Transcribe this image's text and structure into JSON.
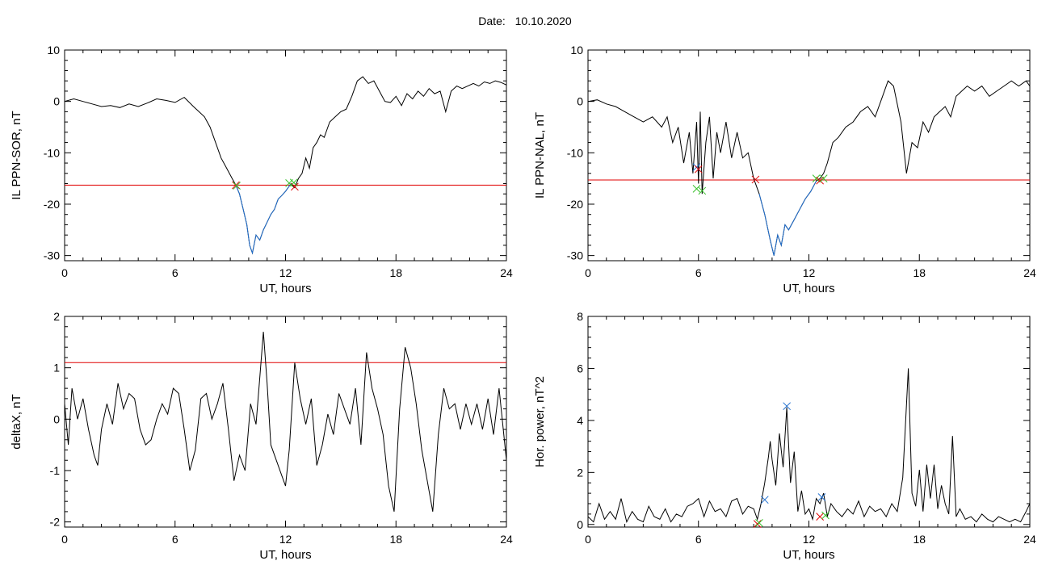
{
  "header": {
    "date_label": "Date:",
    "date_value": "10.10.2020"
  },
  "chart_data": [
    {
      "id": "sor",
      "type": "line",
      "ylabel": "IL PPN-SOR, nT",
      "xlabel": "UT, hours",
      "xlim": [
        0,
        24
      ],
      "ylim": [
        -31,
        10
      ],
      "xticks": [
        0,
        6,
        12,
        18,
        24
      ],
      "yticks": [
        -30,
        -20,
        -10,
        0,
        10
      ],
      "series_color": "#000000",
      "highlight_color": "#1f6fd0",
      "threshold": {
        "value": -16.3,
        "color": "#e00000"
      },
      "series": [
        {
          "x": [
            0,
            0.5,
            1,
            1.5,
            2,
            2.5,
            3,
            3.5,
            4,
            4.5,
            5,
            5.5,
            6,
            6.5,
            7,
            7.3,
            7.6,
            7.9,
            8.2,
            8.5,
            8.8,
            9.1,
            9.3,
            9.5,
            9.7,
            9.9,
            10.05,
            10.2,
            10.4,
            10.6,
            10.8,
            11,
            11.2,
            11.4,
            11.6,
            11.8,
            12,
            12.3,
            12.5,
            12.7,
            12.9,
            13.1,
            13.3,
            13.5,
            13.7,
            13.9,
            14.1,
            14.4,
            14.7,
            15,
            15.3,
            15.6,
            15.9,
            16.2,
            16.5,
            16.8,
            17.1,
            17.4,
            17.7,
            18,
            18.3,
            18.6,
            18.9,
            19.2,
            19.5,
            19.8,
            20.1,
            20.4,
            20.7,
            21,
            21.3,
            21.6,
            21.9,
            22.2,
            22.5,
            22.8,
            23.1,
            23.4,
            23.7,
            24
          ],
          "y": [
            0,
            0.5,
            0,
            -0.5,
            -1,
            -0.8,
            -1.2,
            -0.5,
            -1,
            -0.3,
            0.5,
            0.2,
            -0.2,
            0.8,
            -1,
            -2,
            -3,
            -5,
            -8,
            -11,
            -13,
            -15,
            -16.3,
            -18,
            -21,
            -24,
            -28,
            -29.5,
            -26,
            -27,
            -25,
            -23.5,
            -22,
            -21,
            -19,
            -18.3,
            -17.5,
            -16,
            -16.8,
            -15,
            -14,
            -11,
            -13,
            -9,
            -8,
            -6.5,
            -7,
            -4,
            -3,
            -2,
            -1.5,
            1,
            4,
            4.8,
            3.5,
            4,
            2,
            0,
            -0.2,
            1,
            -0.8,
            1.5,
            0.5,
            2,
            1,
            2.5,
            1.5,
            2,
            -2,
            2,
            3,
            2.5,
            3,
            3.5,
            3,
            3.8,
            3.5,
            4,
            3.7,
            3.2
          ]
        },
        {
          "x": [
            9.3,
            9.5,
            9.7,
            9.9,
            10.05,
            10.2,
            10.4,
            10.6,
            10.8,
            11,
            11.2,
            11.4,
            11.6,
            11.8,
            12,
            12.3
          ],
          "y": [
            -16.3,
            -18,
            -21,
            -24,
            -28,
            -29.5,
            -26,
            -27,
            -25,
            -23.5,
            -22,
            -21,
            -19,
            -18.3,
            -17.5,
            -16
          ]
        }
      ],
      "markers": [
        {
          "x": 9.3,
          "y": -16.3,
          "color": "#e00000"
        },
        {
          "x": 9.35,
          "y": -16.4,
          "color": "#39c02c"
        },
        {
          "x": 12.2,
          "y": -15.9,
          "color": "#39c02c"
        },
        {
          "x": 12.5,
          "y": -16.6,
          "color": "#e00000"
        },
        {
          "x": 12.45,
          "y": -15.8,
          "color": "#39c02c"
        }
      ]
    },
    {
      "id": "nal",
      "type": "line",
      "ylabel": "IL PPN-NAL, nT",
      "xlabel": "UT, hours",
      "xlim": [
        0,
        24
      ],
      "ylim": [
        -31,
        10
      ],
      "xticks": [
        0,
        6,
        12,
        18,
        24
      ],
      "yticks": [
        -30,
        -20,
        -10,
        0,
        10
      ],
      "series_color": "#000000",
      "highlight_color": "#1f6fd0",
      "threshold": {
        "value": -15.3,
        "color": "#e00000"
      },
      "series": [
        {
          "x": [
            0,
            0.5,
            1,
            1.5,
            2,
            2.5,
            3,
            3.5,
            4,
            4.3,
            4.6,
            4.9,
            5.2,
            5.5,
            5.7,
            5.9,
            6,
            6.1,
            6.2,
            6.4,
            6.6,
            6.8,
            7,
            7.2,
            7.5,
            7.8,
            8.1,
            8.4,
            8.7,
            9,
            9.3,
            9.6,
            9.9,
            10.1,
            10.3,
            10.5,
            10.7,
            10.9,
            11.2,
            11.5,
            11.8,
            12.1,
            12.4,
            12.6,
            12.8,
            13,
            13.3,
            13.6,
            14,
            14.4,
            14.8,
            15.2,
            15.6,
            16,
            16.3,
            16.6,
            17,
            17.3,
            17.6,
            17.9,
            18.2,
            18.5,
            18.8,
            19.1,
            19.4,
            19.7,
            20,
            20.3,
            20.6,
            21,
            21.4,
            21.8,
            22.2,
            22.6,
            23,
            23.4,
            23.8,
            24
          ],
          "y": [
            0,
            0.3,
            -0.5,
            -1,
            -2,
            -3,
            -4,
            -3,
            -5,
            -3,
            -8,
            -5,
            -12,
            -6,
            -14,
            -4,
            -16,
            -2,
            -18,
            -8,
            -3,
            -15,
            -6,
            -10,
            -4,
            -11,
            -6,
            -11,
            -10,
            -15,
            -18,
            -22,
            -27,
            -30,
            -26,
            -28,
            -24,
            -25,
            -23,
            -21,
            -19,
            -17.5,
            -15.5,
            -15,
            -14,
            -12,
            -8,
            -7,
            -5,
            -4,
            -2,
            -1,
            -3,
            1,
            4,
            3,
            -4,
            -14,
            -8,
            -9,
            -4,
            -6,
            -3,
            -2,
            -1,
            -3,
            1,
            2,
            3,
            2,
            3,
            1,
            2,
            3,
            4,
            3,
            4,
            3
          ]
        },
        {
          "x": [
            9.3,
            9.6,
            9.9,
            10.1,
            10.3,
            10.5,
            10.7,
            10.9,
            11.2,
            11.5,
            11.8,
            12.1,
            12.4
          ],
          "y": [
            -18,
            -22,
            -27,
            -30,
            -26,
            -28,
            -24,
            -25,
            -23,
            -21,
            -19,
            -17.5,
            -15.5
          ]
        }
      ],
      "markers": [
        {
          "x": 5.9,
          "y": -12.8,
          "color": "#1f6fd0"
        },
        {
          "x": 6.0,
          "y": -13.2,
          "color": "#e00000"
        },
        {
          "x": 5.9,
          "y": -17.0,
          "color": "#39c02c"
        },
        {
          "x": 6.2,
          "y": -17.4,
          "color": "#39c02c"
        },
        {
          "x": 9.1,
          "y": -15.2,
          "color": "#e00000"
        },
        {
          "x": 12.4,
          "y": -15.0,
          "color": "#39c02c"
        },
        {
          "x": 12.6,
          "y": -15.4,
          "color": "#e00000"
        },
        {
          "x": 12.8,
          "y": -15.0,
          "color": "#39c02c"
        }
      ]
    },
    {
      "id": "deltax",
      "type": "line",
      "ylabel": "deltaX, nT",
      "xlabel": "UT, hours",
      "xlim": [
        0,
        24
      ],
      "ylim": [
        -2.1,
        2
      ],
      "xticks": [
        0,
        6,
        12,
        18,
        24
      ],
      "yticks": [
        -2,
        -1,
        0,
        1,
        2
      ],
      "series_color": "#000000",
      "threshold": {
        "value": 1.1,
        "color": "#e00000"
      },
      "series": [
        {
          "x": [
            0,
            0.2,
            0.4,
            0.7,
            1,
            1.3,
            1.6,
            1.8,
            2,
            2.3,
            2.6,
            2.9,
            3.2,
            3.5,
            3.8,
            4.1,
            4.4,
            4.7,
            5,
            5.3,
            5.6,
            5.9,
            6.2,
            6.5,
            6.8,
            7.1,
            7.4,
            7.7,
            8,
            8.3,
            8.6,
            8.9,
            9.2,
            9.5,
            9.8,
            10.1,
            10.4,
            10.6,
            10.8,
            11,
            11.2,
            11.5,
            11.8,
            12,
            12.2,
            12.5,
            12.8,
            13.1,
            13.4,
            13.7,
            14,
            14.3,
            14.6,
            14.9,
            15.2,
            15.5,
            15.8,
            16.1,
            16.4,
            16.7,
            17,
            17.3,
            17.6,
            17.9,
            18.2,
            18.5,
            18.8,
            19.1,
            19.4,
            19.7,
            20,
            20.3,
            20.6,
            20.9,
            21.2,
            21.5,
            21.8,
            22.1,
            22.4,
            22.7,
            23,
            23.3,
            23.6,
            24
          ],
          "y": [
            0.3,
            -0.5,
            0.6,
            0,
            0.4,
            -0.2,
            -0.7,
            -0.9,
            -0.2,
            0.3,
            -0.1,
            0.7,
            0.2,
            0.5,
            0.4,
            -0.2,
            -0.5,
            -0.4,
            0,
            0.3,
            0.1,
            0.6,
            0.5,
            -0.2,
            -1,
            -0.6,
            0.4,
            0.5,
            0,
            0.3,
            0.7,
            -0.2,
            -1.2,
            -0.7,
            -1,
            0.3,
            -0.1,
            0.8,
            1.7,
            0.7,
            -0.5,
            -0.8,
            -1.1,
            -1.3,
            -0.6,
            1.1,
            0.4,
            -0.1,
            0.4,
            -0.9,
            -0.5,
            0.1,
            -0.3,
            0.5,
            0.2,
            -0.1,
            0.6,
            -0.5,
            1.3,
            0.6,
            0.2,
            -0.3,
            -1.3,
            -1.8,
            0.2,
            1.4,
            1.0,
            0.3,
            -0.6,
            -1.2,
            -1.8,
            -0.3,
            0.6,
            0.2,
            0.3,
            -0.2,
            0.3,
            -0.1,
            0.3,
            -0.2,
            0.4,
            -0.3,
            0.6,
            -0.8
          ]
        }
      ],
      "markers": []
    },
    {
      "id": "power",
      "type": "line",
      "ylabel": "Hor. power, nT^2",
      "xlabel": "UT, hours",
      "xlim": [
        0,
        24
      ],
      "ylim": [
        -0.1,
        8
      ],
      "xticks": [
        0,
        6,
        12,
        18,
        24
      ],
      "yticks": [
        0,
        2,
        4,
        6,
        8
      ],
      "series_color": "#000000",
      "series": [
        {
          "x": [
            0,
            0.3,
            0.6,
            0.9,
            1.2,
            1.5,
            1.8,
            2.1,
            2.4,
            2.7,
            3,
            3.3,
            3.6,
            3.9,
            4.2,
            4.5,
            4.8,
            5.1,
            5.4,
            5.7,
            6,
            6.3,
            6.6,
            6.9,
            7.2,
            7.5,
            7.8,
            8.1,
            8.4,
            8.7,
            9,
            9.2,
            9.4,
            9.6,
            9.8,
            9.9,
            10,
            10.2,
            10.4,
            10.6,
            10.8,
            11,
            11.2,
            11.4,
            11.6,
            11.8,
            12,
            12.2,
            12.4,
            12.6,
            12.8,
            13,
            13.2,
            13.5,
            13.8,
            14.1,
            14.4,
            14.7,
            15,
            15.3,
            15.6,
            15.9,
            16.2,
            16.5,
            16.8,
            17.1,
            17.4,
            17.6,
            17.8,
            18,
            18.2,
            18.4,
            18.6,
            18.8,
            19,
            19.2,
            19.4,
            19.6,
            19.8,
            20,
            20.2,
            20.5,
            20.8,
            21.1,
            21.4,
            21.7,
            22,
            22.3,
            22.6,
            22.9,
            23.2,
            23.5,
            23.8,
            24
          ],
          "y": [
            0.3,
            0.1,
            0.8,
            0.2,
            0.5,
            0.2,
            1.0,
            0.1,
            0.5,
            0.2,
            0.1,
            0.7,
            0.3,
            0.2,
            0.6,
            0.1,
            0.4,
            0.3,
            0.7,
            0.8,
            1.0,
            0.3,
            0.9,
            0.5,
            0.6,
            0.3,
            0.9,
            1.0,
            0.4,
            0.7,
            0.6,
            0.2,
            0.8,
            1.6,
            2.6,
            3.2,
            2.5,
            1.5,
            3.5,
            2.2,
            4.5,
            1.6,
            2.8,
            0.5,
            1.3,
            0.4,
            0.6,
            0.2,
            1.0,
            0.8,
            1.2,
            0.3,
            0.8,
            0.5,
            0.3,
            0.6,
            0.4,
            0.9,
            0.3,
            0.7,
            0.5,
            0.6,
            0.3,
            0.8,
            0.5,
            1.8,
            6.0,
            1.2,
            0.7,
            2.1,
            0.5,
            2.3,
            1.0,
            2.3,
            0.6,
            1.5,
            0.8,
            0.4,
            3.4,
            0.3,
            0.6,
            0.2,
            0.3,
            0.1,
            0.4,
            0.2,
            0.1,
            0.3,
            0.2,
            0.1,
            0.2,
            0.1,
            0.5,
            0.8
          ]
        }
      ],
      "markers": [
        {
          "x": 10.8,
          "y": 4.55,
          "color": "#1f6fd0"
        },
        {
          "x": 9.6,
          "y": 0.95,
          "color": "#1f6fd0"
        },
        {
          "x": 9.2,
          "y": 0.02,
          "color": "#e00000"
        },
        {
          "x": 9.3,
          "y": 0.06,
          "color": "#39c02c"
        },
        {
          "x": 12.7,
          "y": 1.05,
          "color": "#1f6fd0"
        },
        {
          "x": 12.6,
          "y": 0.3,
          "color": "#e00000"
        },
        {
          "x": 12.9,
          "y": 0.35,
          "color": "#39c02c"
        }
      ]
    }
  ]
}
